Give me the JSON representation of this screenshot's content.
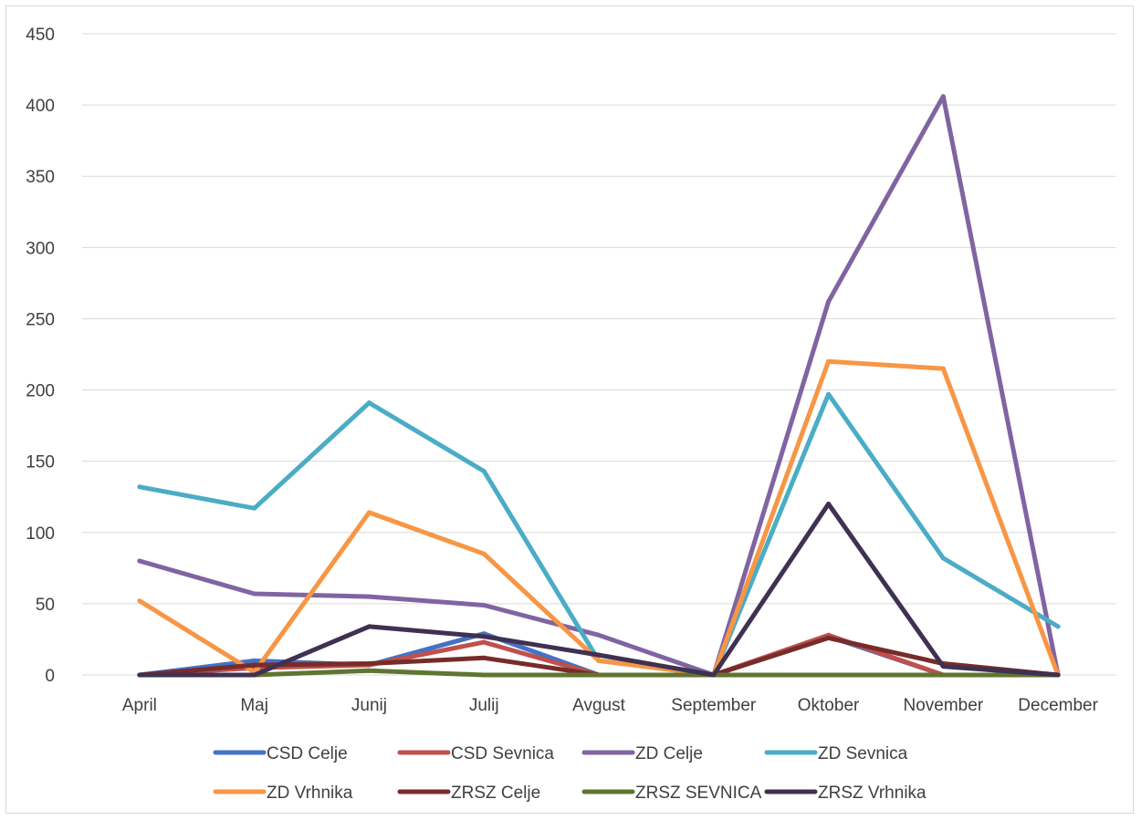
{
  "chart_data": {
    "type": "line",
    "title": "",
    "xlabel": "",
    "ylabel": "",
    "categories": [
      "April",
      "Maj",
      "Junij",
      "Julij",
      "Avgust",
      "September",
      "Oktober",
      "November",
      "December"
    ],
    "ylim": [
      0,
      450
    ],
    "yticks": [
      0,
      50,
      100,
      150,
      200,
      250,
      300,
      350,
      400,
      450
    ],
    "grid": true,
    "legend_position": "bottom",
    "series": [
      {
        "name": "CSD Celje",
        "color": "#4472C4",
        "values": [
          0,
          10,
          7,
          29,
          0,
          0,
          27,
          0,
          0
        ]
      },
      {
        "name": "CSD Sevnica",
        "color": "#C0504D",
        "values": [
          0,
          5,
          7,
          23,
          0,
          0,
          28,
          0,
          0
        ]
      },
      {
        "name": "ZD Celje",
        "color": "#8064A2",
        "values": [
          80,
          57,
          55,
          49,
          28,
          0,
          262,
          406,
          0
        ]
      },
      {
        "name": "ZD Sevnica",
        "color": "#4BACC6",
        "values": [
          132,
          117,
          191,
          143,
          10,
          0,
          197,
          82,
          34
        ]
      },
      {
        "name": "ZD Vrhnika",
        "color": "#F79646",
        "values": [
          52,
          2,
          114,
          85,
          10,
          0,
          220,
          215,
          0
        ]
      },
      {
        "name": "ZRSZ Celje",
        "color": "#772C2A",
        "values": [
          0,
          7,
          8,
          12,
          0,
          0,
          26,
          8,
          0
        ]
      },
      {
        "name": "ZRSZ SEVNICA",
        "color": "#5F7530",
        "values": [
          0,
          0,
          3,
          0,
          0,
          0,
          0,
          0,
          0
        ]
      },
      {
        "name": "ZRSZ Vrhnika",
        "color": "#3F3151",
        "values": [
          0,
          0,
          34,
          27,
          14,
          0,
          120,
          6,
          0
        ]
      }
    ]
  }
}
